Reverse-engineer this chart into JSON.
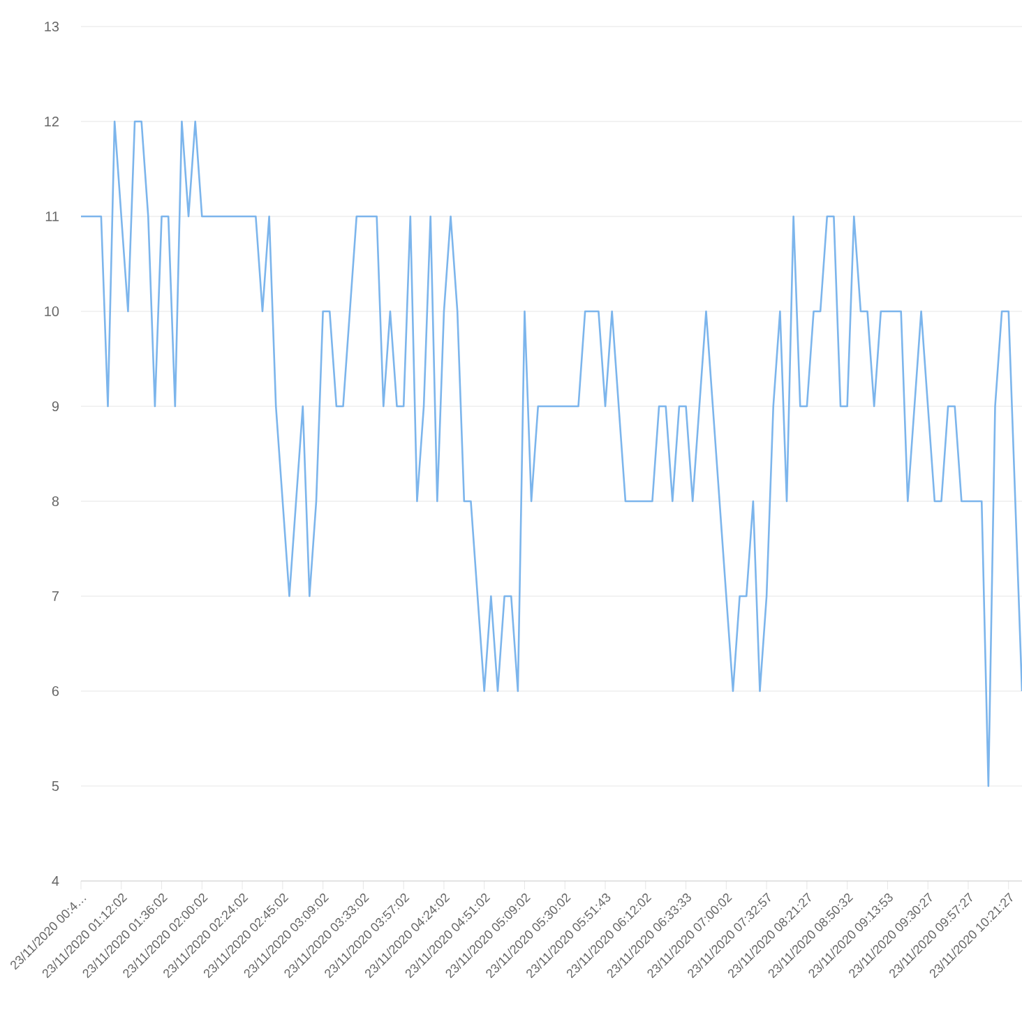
{
  "chart_data": {
    "type": "line",
    "categories": [
      "23/11/2020 00:4…",
      null,
      null,
      null,
      null,
      null,
      "23/11/2020 01:12:02",
      null,
      null,
      null,
      null,
      null,
      "23/11/2020 01:36:02",
      null,
      null,
      null,
      null,
      null,
      "23/11/2020 02:00:02",
      null,
      null,
      null,
      null,
      null,
      "23/11/2020 02:24:02",
      null,
      null,
      null,
      null,
      null,
      "23/11/2020 02:45:02",
      null,
      null,
      null,
      null,
      null,
      "23/11/2020 03:09:02",
      null,
      null,
      null,
      null,
      null,
      "23/11/2020 03:33:02",
      null,
      null,
      null,
      null,
      null,
      "23/11/2020 03:57:02",
      null,
      null,
      null,
      null,
      null,
      "23/11/2020 04:24:02",
      null,
      null,
      null,
      null,
      null,
      "23/11/2020 04:51:02",
      null,
      null,
      null,
      null,
      null,
      "23/11/2020 05:09:02",
      null,
      null,
      null,
      null,
      null,
      "23/11/2020 05:30:02",
      null,
      null,
      null,
      null,
      null,
      "23/11/2020 05:51:43",
      null,
      null,
      null,
      null,
      null,
      "23/11/2020 06:12:02",
      null,
      null,
      null,
      null,
      null,
      "23/11/2020 06:33:33",
      null,
      null,
      null,
      null,
      null,
      "23/11/2020 07:00:02",
      null,
      null,
      null,
      null,
      null,
      "23/11/2020 07:32:57",
      null,
      null,
      null,
      null,
      null,
      "23/11/2020 08:21:27",
      null,
      null,
      null,
      null,
      null,
      "23/11/2020 08:50:32",
      null,
      null,
      null,
      null,
      null,
      "23/11/2020 09:13:53",
      null,
      null,
      null,
      null,
      null,
      "23/11/2020 09:30:27",
      null,
      null,
      null,
      null,
      null,
      "23/11/2020 09:57:27",
      null,
      null,
      null,
      null,
      null,
      "23/11/2020 10:21:27",
      null,
      null
    ],
    "values": [
      11,
      11,
      11,
      11,
      9,
      12,
      11,
      10,
      12,
      12,
      11,
      9,
      11,
      11,
      9,
      12,
      11,
      12,
      11,
      11,
      11,
      11,
      11,
      11,
      11,
      11,
      11,
      10,
      11,
      9,
      8,
      7,
      8,
      9,
      7,
      8,
      10,
      10,
      9,
      9,
      10,
      11,
      11,
      11,
      11,
      9,
      10,
      9,
      9,
      11,
      8,
      9,
      11,
      8,
      10,
      11,
      10,
      8,
      8,
      7,
      6,
      7,
      6,
      7,
      7,
      6,
      10,
      8,
      9,
      9,
      9,
      9,
      9,
      9,
      9,
      10,
      10,
      10,
      9,
      10,
      9,
      8,
      8,
      8,
      8,
      8,
      9,
      9,
      8,
      9,
      9,
      8,
      9,
      10,
      9,
      8,
      7,
      6,
      7,
      7,
      8,
      6,
      7,
      9,
      10,
      8,
      11,
      9,
      9,
      10,
      10,
      11,
      11,
      9,
      9,
      11,
      10,
      10,
      9,
      10,
      10,
      10,
      10,
      8,
      9,
      10,
      9,
      8,
      8,
      9,
      9,
      8,
      8,
      8,
      8,
      5,
      9,
      10,
      10,
      8,
      6
    ],
    "color": "#7cb5ec",
    "ylim": [
      4,
      13
    ],
    "yticks": [
      4,
      5,
      6,
      7,
      8,
      9,
      10,
      11,
      12,
      13
    ],
    "grid": "y"
  }
}
